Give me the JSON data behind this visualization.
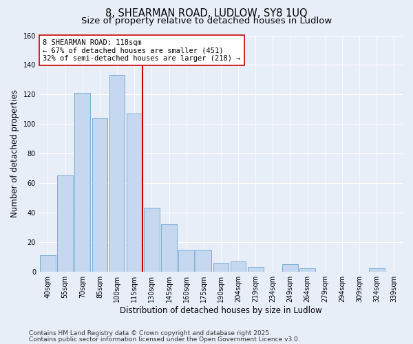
{
  "title": "8, SHEARMAN ROAD, LUDLOW, SY8 1UQ",
  "subtitle": "Size of property relative to detached houses in Ludlow",
  "xlabel": "Distribution of detached houses by size in Ludlow",
  "ylabel": "Number of detached properties",
  "categories": [
    "40sqm",
    "55sqm",
    "70sqm",
    "85sqm",
    "100sqm",
    "115sqm",
    "130sqm",
    "145sqm",
    "160sqm",
    "175sqm",
    "190sqm",
    "204sqm",
    "219sqm",
    "234sqm",
    "249sqm",
    "264sqm",
    "279sqm",
    "294sqm",
    "309sqm",
    "324sqm",
    "339sqm"
  ],
  "values": [
    11,
    65,
    121,
    104,
    133,
    107,
    43,
    32,
    15,
    15,
    6,
    7,
    3,
    0,
    5,
    2,
    0,
    0,
    0,
    2,
    0
  ],
  "bar_color": "#c5d8f0",
  "bar_edge_color": "#7aadd4",
  "marker_index": 5,
  "marker_color": "#cc0000",
  "ylim": [
    0,
    160
  ],
  "yticks": [
    0,
    20,
    40,
    60,
    80,
    100,
    120,
    140,
    160
  ],
  "annotation_title": "8 SHEARMAN ROAD: 118sqm",
  "annotation_line1": "← 67% of detached houses are smaller (451)",
  "annotation_line2": "32% of semi-detached houses are larger (218) →",
  "bg_color": "#e8eef8",
  "grid_color": "#ffffff",
  "footer1": "Contains HM Land Registry data © Crown copyright and database right 2025.",
  "footer2": "Contains public sector information licensed under the Open Government Licence v3.0.",
  "title_fontsize": 10.5,
  "subtitle_fontsize": 9.5,
  "axis_label_fontsize": 8.5,
  "tick_fontsize": 7,
  "annotation_fontsize": 7.5,
  "footer_fontsize": 6.5
}
